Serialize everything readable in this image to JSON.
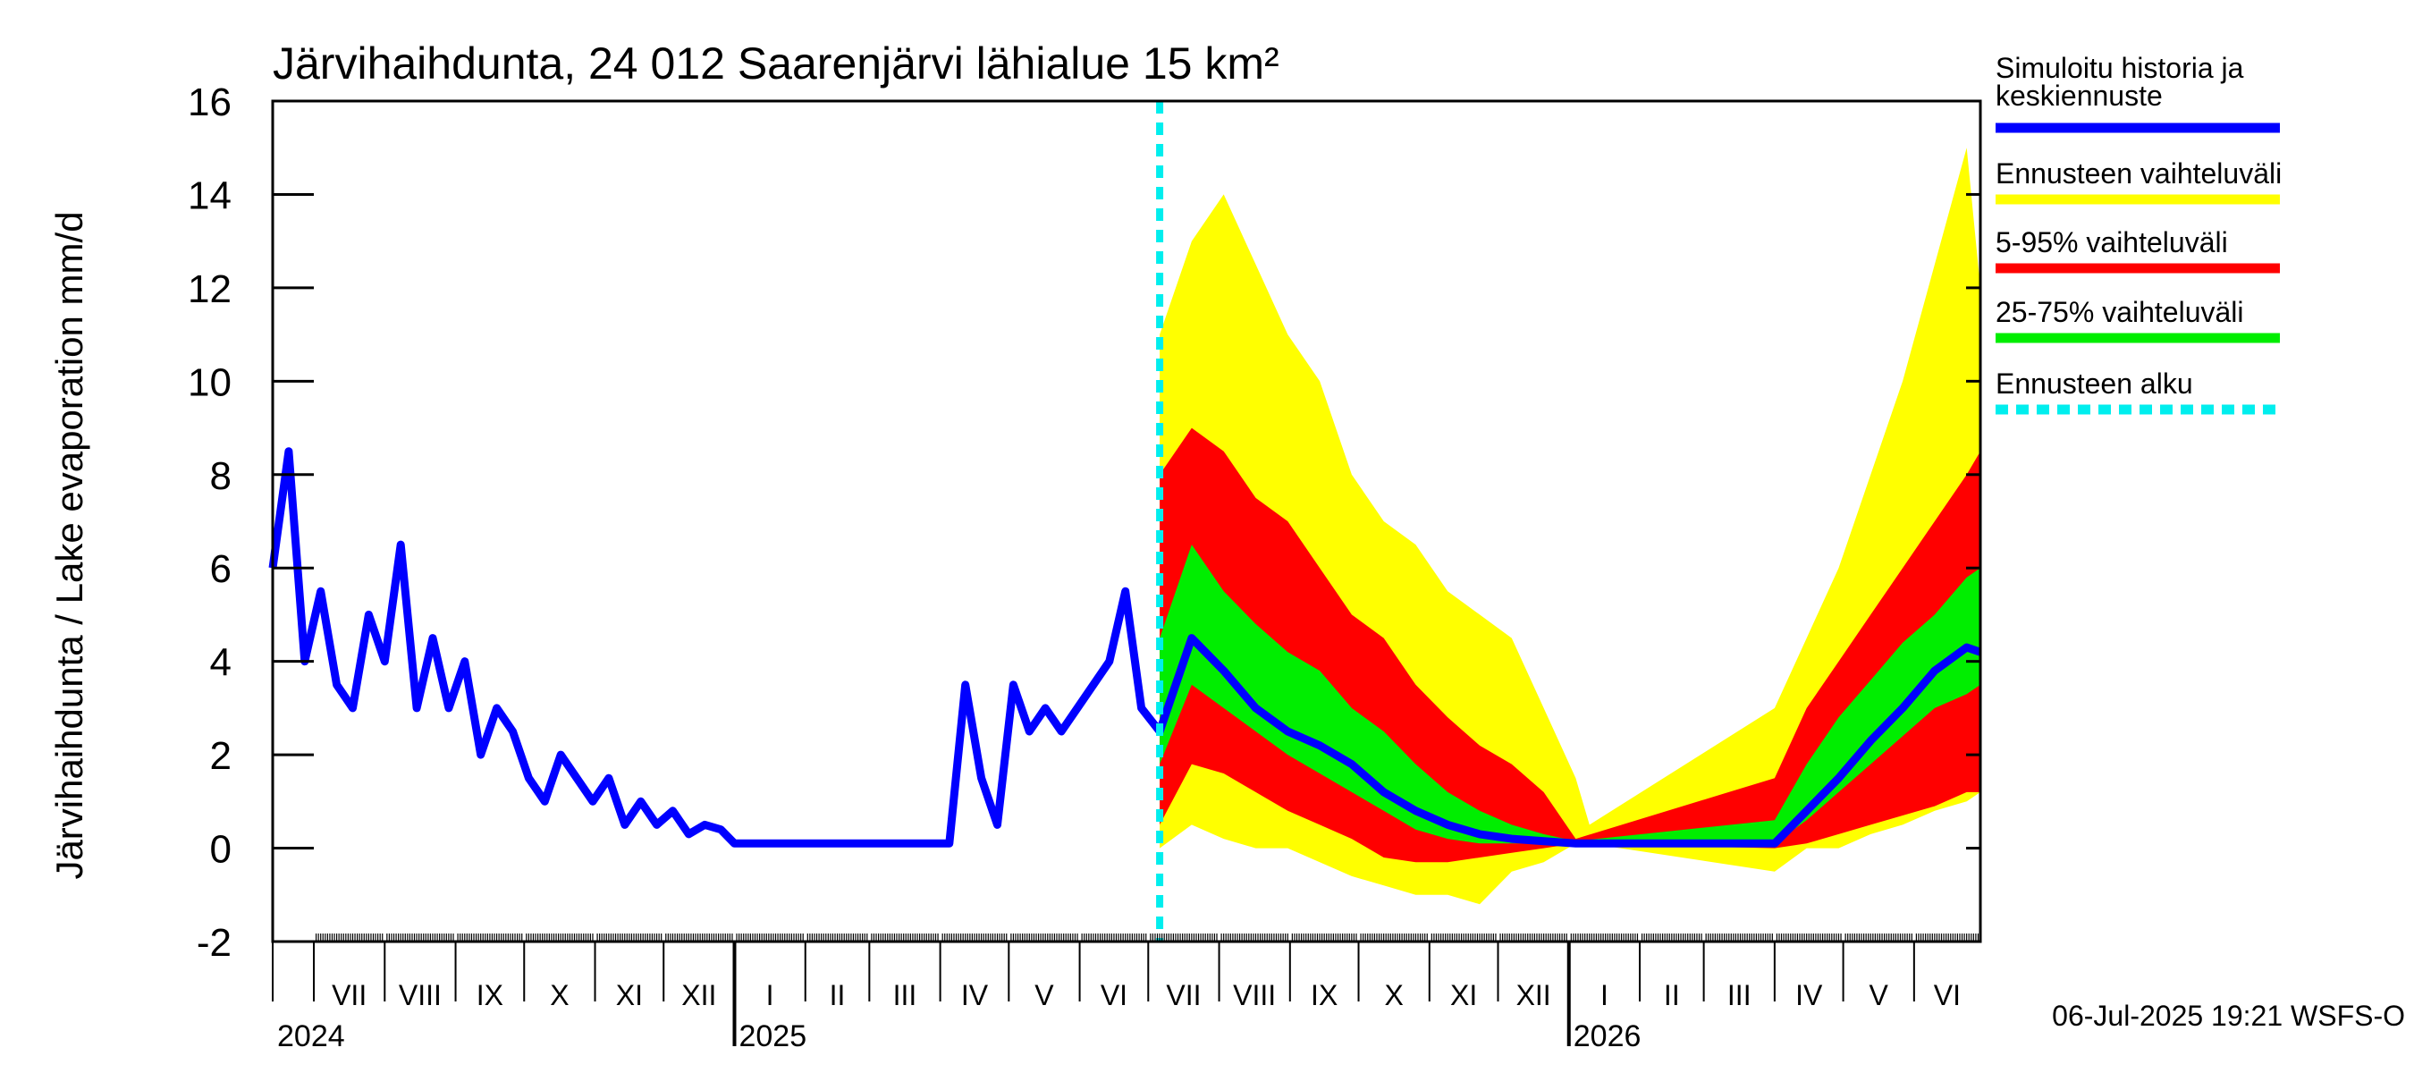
{
  "chart_data": {
    "type": "area",
    "title": "Järvihaihdunta, 24 012 Saarenjärvi lähialue 15 km²",
    "ylabel": "Järvihaihdunta / Lake evaporation   mm/d",
    "ylim": [
      -2,
      16
    ],
    "yticks": [
      -2,
      0,
      2,
      4,
      6,
      8,
      10,
      12,
      14,
      16
    ],
    "xlim": [
      "2024-06-13",
      "2026-06-30"
    ],
    "forecast_start": "2025-07-06",
    "months": [
      {
        "label": "VII",
        "start": "2024-07-01"
      },
      {
        "label": "VIII",
        "start": "2024-08-01"
      },
      {
        "label": "IX",
        "start": "2024-09-01"
      },
      {
        "label": "X",
        "start": "2024-10-01"
      },
      {
        "label": "XI",
        "start": "2024-11-01"
      },
      {
        "label": "XII",
        "start": "2024-12-01"
      },
      {
        "label": "I",
        "start": "2025-01-01"
      },
      {
        "label": "II",
        "start": "2025-02-01"
      },
      {
        "label": "III",
        "start": "2025-03-01"
      },
      {
        "label": "IV",
        "start": "2025-04-01"
      },
      {
        "label": "V",
        "start": "2025-05-01"
      },
      {
        "label": "VI",
        "start": "2025-06-01"
      },
      {
        "label": "VII",
        "start": "2025-07-01"
      },
      {
        "label": "VIII",
        "start": "2025-08-01"
      },
      {
        "label": "IX",
        "start": "2025-09-01"
      },
      {
        "label": "X",
        "start": "2025-10-01"
      },
      {
        "label": "XI",
        "start": "2025-11-01"
      },
      {
        "label": "XII",
        "start": "2025-12-01"
      },
      {
        "label": "I",
        "start": "2026-01-01"
      },
      {
        "label": "II",
        "start": "2026-02-01"
      },
      {
        "label": "III",
        "start": "2026-03-01"
      },
      {
        "label": "IV",
        "start": "2026-04-01"
      },
      {
        "label": "V",
        "start": "2026-05-01"
      },
      {
        "label": "VI",
        "start": "2026-06-01"
      }
    ],
    "years": [
      {
        "label": "2024",
        "at": "2024-07-01"
      },
      {
        "label": "2025",
        "at": "2025-01-01"
      },
      {
        "label": "2026",
        "at": "2026-01-01"
      }
    ],
    "legend": [
      {
        "label": "Simuloitu historia ja keskiennuste",
        "color": "#0000ff"
      },
      {
        "label": "Ennusteen vaihteluväli",
        "color": "#ffff00"
      },
      {
        "label": "5-95% vaihteluväli",
        "color": "#ff0000"
      },
      {
        "label": "25-75% vaihteluväli",
        "color": "#00ee00"
      },
      {
        "label": "Ennusteen alku",
        "color": "#00eeee"
      }
    ],
    "series": [
      {
        "name": "Simuloitu historia ja keskiennuste",
        "color": "#0000ff",
        "x": [
          "2024-06-13",
          "2024-06-20",
          "2024-06-27",
          "2024-07-04",
          "2024-07-11",
          "2024-07-18",
          "2024-07-25",
          "2024-08-01",
          "2024-08-08",
          "2024-08-15",
          "2024-08-22",
          "2024-08-29",
          "2024-09-05",
          "2024-09-12",
          "2024-09-19",
          "2024-09-26",
          "2024-10-03",
          "2024-10-10",
          "2024-10-17",
          "2024-10-24",
          "2024-10-31",
          "2024-11-07",
          "2024-11-14",
          "2024-11-21",
          "2024-11-28",
          "2024-12-05",
          "2024-12-12",
          "2024-12-19",
          "2024-12-26",
          "2025-01-01",
          "2025-04-05",
          "2025-04-12",
          "2025-04-19",
          "2025-04-26",
          "2025-05-03",
          "2025-05-10",
          "2025-05-17",
          "2025-05-24",
          "2025-05-31",
          "2025-06-07",
          "2025-06-14",
          "2025-06-21",
          "2025-06-28",
          "2025-07-06",
          "2025-07-20",
          "2025-08-03",
          "2025-08-17",
          "2025-08-31",
          "2025-09-14",
          "2025-09-28",
          "2025-10-12",
          "2025-10-26",
          "2025-11-09",
          "2025-11-23",
          "2025-12-07",
          "2025-12-21",
          "2026-01-04",
          "2026-04-01",
          "2026-04-15",
          "2026-04-29",
          "2026-05-13",
          "2026-05-27",
          "2026-06-10",
          "2026-06-24",
          "2026-06-30"
        ],
        "y": [
          6.0,
          8.5,
          4.0,
          5.5,
          3.5,
          3.0,
          5.0,
          4.0,
          6.5,
          3.0,
          4.5,
          3.0,
          4.0,
          2.0,
          3.0,
          2.5,
          1.5,
          1.0,
          2.0,
          1.5,
          1.0,
          1.5,
          0.5,
          1.0,
          0.5,
          0.8,
          0.3,
          0.5,
          0.4,
          0.1,
          0.1,
          3.5,
          1.5,
          0.5,
          3.5,
          2.5,
          3.0,
          2.5,
          3.0,
          3.5,
          4.0,
          5.5,
          3.0,
          2.5,
          4.5,
          3.8,
          3.0,
          2.5,
          2.2,
          1.8,
          1.2,
          0.8,
          0.5,
          0.3,
          0.2,
          0.15,
          0.1,
          0.1,
          0.8,
          1.5,
          2.3,
          3.0,
          3.8,
          4.3,
          4.2
        ]
      },
      {
        "name": "Ennusteen vaihteluväli",
        "color": "#ffff00",
        "x": [
          "2025-07-06",
          "2025-07-20",
          "2025-08-03",
          "2025-08-17",
          "2025-08-31",
          "2025-09-14",
          "2025-09-28",
          "2025-10-12",
          "2025-10-26",
          "2025-11-09",
          "2025-11-23",
          "2025-12-07",
          "2025-12-21",
          "2026-01-04",
          "2026-01-10",
          "2026-04-01",
          "2026-04-15",
          "2026-04-29",
          "2026-05-13",
          "2026-05-27",
          "2026-06-10",
          "2026-06-24",
          "2026-06-30"
        ],
        "low": [
          0.0,
          0.5,
          0.2,
          0.0,
          0.0,
          -0.3,
          -0.6,
          -0.8,
          -1.0,
          -1.0,
          -1.2,
          -0.5,
          -0.3,
          0.1,
          0.1,
          -0.5,
          0.0,
          0.0,
          0.3,
          0.5,
          0.8,
          1.0,
          1.2
        ],
        "high": [
          11.0,
          13.0,
          14.0,
          12.5,
          11.0,
          10.0,
          8.0,
          7.0,
          6.5,
          5.5,
          5.0,
          4.5,
          3.0,
          1.5,
          0.5,
          3.0,
          4.5,
          6.0,
          8.0,
          10.0,
          12.5,
          15.0,
          12.0
        ]
      },
      {
        "name": "5-95% vaihteluväli",
        "color": "#ff0000",
        "x": [
          "2025-07-06",
          "2025-07-20",
          "2025-08-03",
          "2025-08-17",
          "2025-08-31",
          "2025-09-14",
          "2025-09-28",
          "2025-10-12",
          "2025-10-26",
          "2025-11-09",
          "2025-11-23",
          "2025-12-07",
          "2025-12-21",
          "2026-01-04",
          "2026-04-01",
          "2026-04-15",
          "2026-04-29",
          "2026-05-13",
          "2026-05-27",
          "2026-06-10",
          "2026-06-24",
          "2026-06-30"
        ],
        "low": [
          0.5,
          1.8,
          1.6,
          1.2,
          0.8,
          0.5,
          0.2,
          -0.2,
          -0.3,
          -0.3,
          -0.2,
          -0.1,
          0.0,
          0.1,
          0.0,
          0.1,
          0.3,
          0.5,
          0.7,
          0.9,
          1.2,
          1.2
        ],
        "high": [
          8.0,
          9.0,
          8.5,
          7.5,
          7.0,
          6.0,
          5.0,
          4.5,
          3.5,
          2.8,
          2.2,
          1.8,
          1.2,
          0.2,
          1.5,
          3.0,
          4.0,
          5.0,
          6.0,
          7.0,
          8.0,
          8.5
        ]
      },
      {
        "name": "25-75% vaihteluväli",
        "color": "#00ee00",
        "x": [
          "2025-07-06",
          "2025-07-20",
          "2025-08-03",
          "2025-08-17",
          "2025-08-31",
          "2025-09-14",
          "2025-09-28",
          "2025-10-12",
          "2025-10-26",
          "2025-11-09",
          "2025-11-23",
          "2025-12-07",
          "2025-12-21",
          "2026-01-04",
          "2026-04-01",
          "2026-04-15",
          "2026-04-29",
          "2026-05-13",
          "2026-05-27",
          "2026-06-10",
          "2026-06-24",
          "2026-06-30"
        ],
        "low": [
          1.8,
          3.5,
          3.0,
          2.5,
          2.0,
          1.6,
          1.2,
          0.8,
          0.4,
          0.2,
          0.1,
          0.1,
          0.1,
          0.1,
          0.1,
          0.6,
          1.2,
          1.8,
          2.4,
          3.0,
          3.3,
          3.5
        ],
        "high": [
          4.5,
          6.5,
          5.5,
          4.8,
          4.2,
          3.8,
          3.0,
          2.5,
          1.8,
          1.2,
          0.8,
          0.5,
          0.3,
          0.15,
          0.6,
          1.8,
          2.8,
          3.6,
          4.4,
          5.0,
          5.8,
          6.0
        ]
      }
    ],
    "footer": "06-Jul-2025 19:21 WSFS-O"
  }
}
